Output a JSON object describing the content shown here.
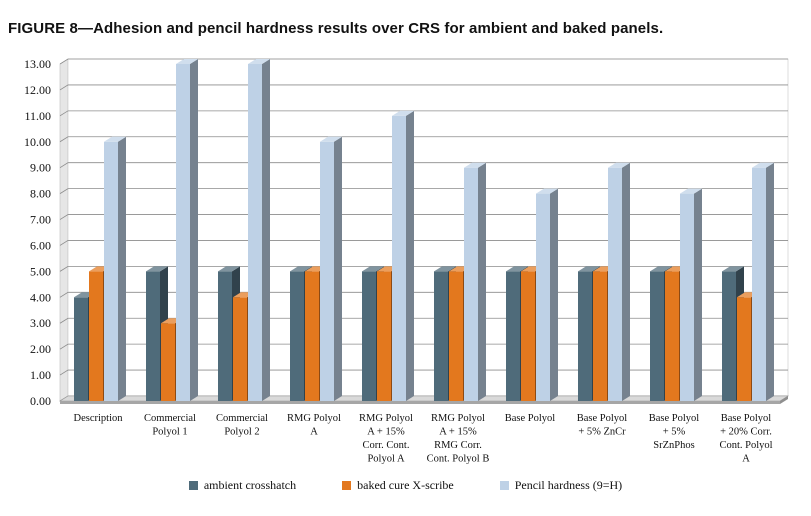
{
  "title": "FIGURE 8—Adhesion and pencil hardness results over CRS for ambient and baked panels.",
  "chart_data": {
    "type": "bar",
    "style": "3d-clustered-columns",
    "title": "FIGURE 8—Adhesion and pencil hardness results over CRS for ambient and baked panels.",
    "xlabel": "",
    "ylabel": "",
    "ylim": [
      0,
      13
    ],
    "ytick_step": 1,
    "ytick_labels": [
      "0.00",
      "1.00",
      "2.00",
      "3.00",
      "4.00",
      "5.00",
      "6.00",
      "7.00",
      "8.00",
      "9.00",
      "10.00",
      "11.00",
      "12.00",
      "13.00"
    ],
    "grid": true,
    "legend_position": "bottom",
    "categories": [
      [
        "Description"
      ],
      [
        "Commercial",
        "Polyol 1"
      ],
      [
        "Commercial",
        "Polyol 2"
      ],
      [
        "RMG Polyol",
        "A"
      ],
      [
        "RMG Polyol",
        "A + 15%",
        "Corr. Cont.",
        "Polyol A"
      ],
      [
        "RMG Polyol",
        "A + 15%",
        "RMG Corr.",
        "Cont. Polyol B"
      ],
      [
        "Base Polyol"
      ],
      [
        "Base Polyol",
        "+ 5% ZnCr"
      ],
      [
        "Base Polyol",
        "+ 5%",
        "SrZnPhos"
      ],
      [
        "Base Polyol",
        "+ 20% Corr.",
        "Cont. Polyol",
        "A"
      ]
    ],
    "series": [
      {
        "name": "ambient crosshatch",
        "color": "#4f6b7a",
        "values": [
          4,
          5,
          5,
          5,
          5,
          5,
          5,
          5,
          5,
          5
        ]
      },
      {
        "name": "baked cure X-scribe",
        "color": "#e3781e",
        "values": [
          5,
          3,
          4,
          5,
          5,
          5,
          5,
          5,
          5,
          4
        ]
      },
      {
        "name": "Pencil hardness (9=H)",
        "color": "#bed1e6",
        "values": [
          10,
          13,
          13,
          10,
          11,
          9,
          8,
          9,
          8,
          9
        ]
      }
    ]
  }
}
